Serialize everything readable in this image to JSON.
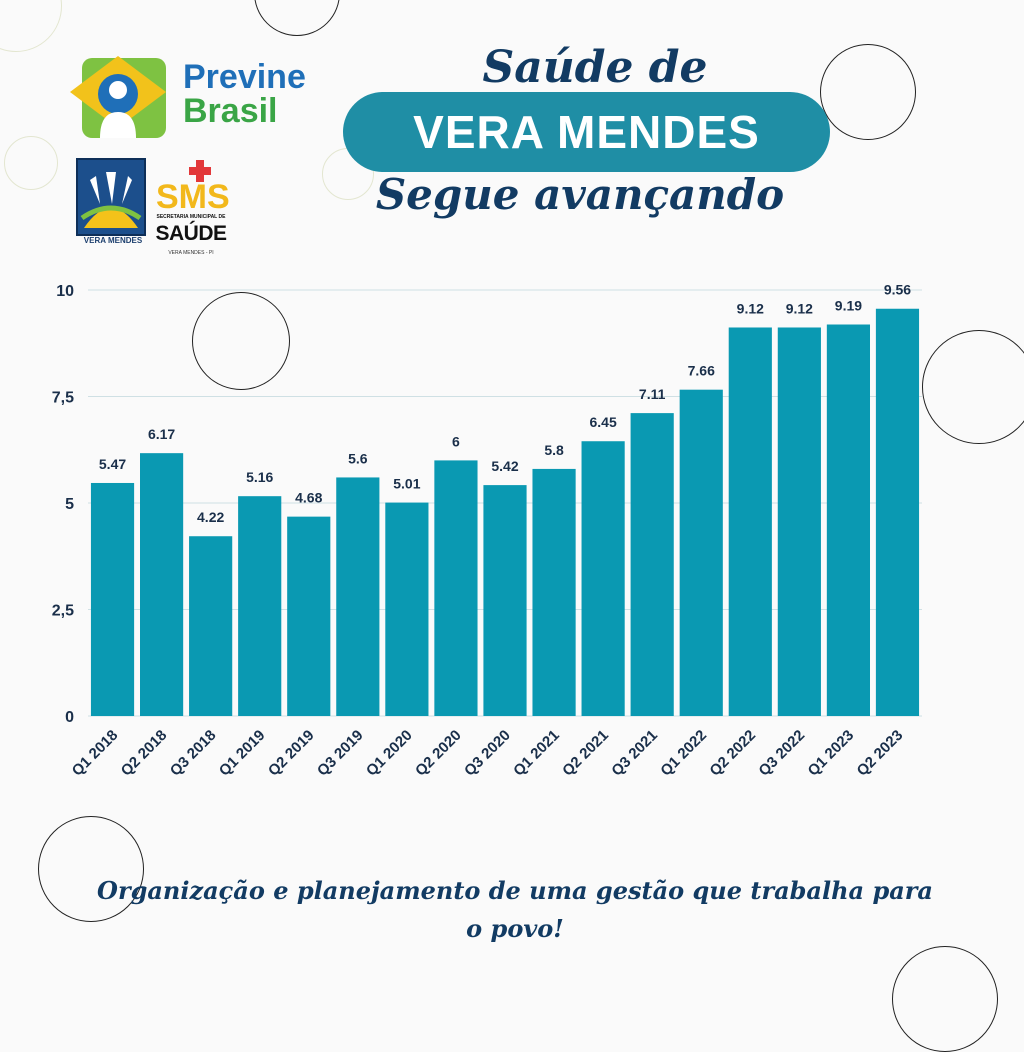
{
  "header": {
    "title_top": "Saúde de",
    "title_pill": "VERA MENDES",
    "title_bottom": "Segue avançando"
  },
  "logos": {
    "previne_line1": "Previne",
    "previne_line2": "Brasil",
    "prefeitura_caption": "VERA MENDES",
    "sms_mark": "SMS",
    "sms_line1": "SECRETARIA MUNICIPAL DE",
    "sms_line2": "SAÚDE",
    "sms_line3": "VERA MENDES - PI"
  },
  "footer": {
    "line1": "Organização e planejamento de uma gestão que trabalha para",
    "line2": "o povo!"
  },
  "colors": {
    "bar": "#0a99b2",
    "heading": "#123b63",
    "pill": "#1f8ea5"
  },
  "chart_data": {
    "type": "bar",
    "categories": [
      "Q1 2018",
      "Q2 2018",
      "Q3 2018",
      "Q1 2019",
      "Q2 2019",
      "Q3 2019",
      "Q1 2020",
      "Q2 2020",
      "Q3 2020",
      "Q1 2021",
      "Q2 2021",
      "Q3 2021",
      "Q1 2022",
      "Q2 2022",
      "Q3 2022",
      "Q1 2023",
      "Q2 2023"
    ],
    "values": [
      5.47,
      6.17,
      4.22,
      5.16,
      4.68,
      5.6,
      5.01,
      6,
      5.42,
      5.8,
      6.45,
      7.11,
      7.66,
      9.12,
      9.12,
      9.19,
      9.56
    ],
    "value_labels": [
      "5.47",
      "6.17",
      "4.22",
      "5.16",
      "4.68",
      "5.6",
      "5.01",
      "6",
      "5.42",
      "5.8",
      "6.45",
      "7.11",
      "7.66",
      "9.12",
      "9.12",
      "9.19",
      "9.56"
    ],
    "ylim": [
      0,
      10
    ],
    "yticks": [
      0,
      2.5,
      5,
      7.5,
      10
    ],
    "ytick_labels": [
      "0",
      "2,5",
      "5",
      "7,5",
      "10"
    ],
    "grid": true
  }
}
